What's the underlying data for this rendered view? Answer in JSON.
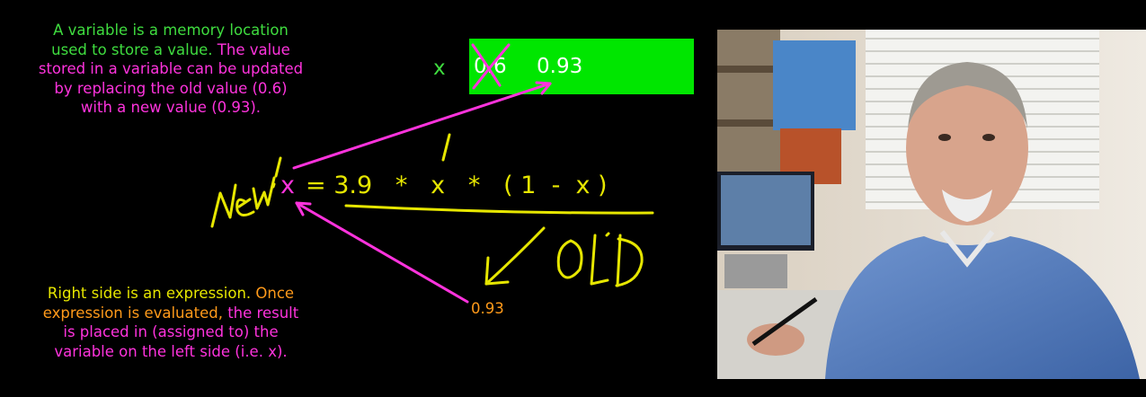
{
  "intro": {
    "line1": "A variable is a memory location",
    "line2_green": "used to store a value.",
    "line2_magenta": " The value",
    "line3": "stored in a variable can be updated",
    "line4": "by replacing the old value (0.6)",
    "line5": "with a new value (0.93)."
  },
  "memory": {
    "label": "x",
    "old_value": "0.6",
    "new_value": "0.93"
  },
  "equation": {
    "lhs": "x",
    "rhs": "= 3.9   *   x   *   ( 1  -  x )"
  },
  "result_value": "0.93",
  "explanation": {
    "line1_yellow": "Right side is an expression.",
    "line1_orange": "  Once",
    "line2_orange": "expression is evaluated,",
    "line2_magenta": " the result",
    "line3": "is placed in (assigned to) the",
    "line4": "variable on the left side (i.e. x)."
  },
  "colors": {
    "background": "#000000",
    "green_text": "#3fdc3f",
    "memory_box": "#00e600",
    "magenta": "#ff33dd",
    "yellow": "#e6e600",
    "orange": "#ff9a1a"
  }
}
